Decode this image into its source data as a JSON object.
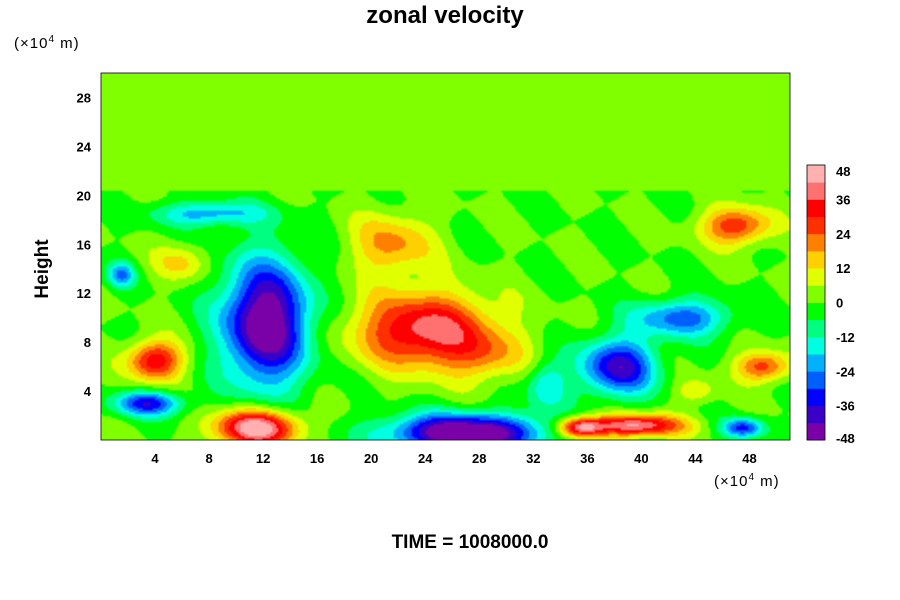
{
  "chart_data": {
    "type": "heatmap",
    "title": "zonal velocity",
    "xlabel": "",
    "ylabel": "Height",
    "x_unit": {
      "base": "(×10",
      "exp": "4",
      "rest": " m)"
    },
    "y_unit": {
      "base": "(×10",
      "exp": "4",
      "rest": " m)"
    },
    "xlim": [
      0,
      51
    ],
    "ylim": [
      0,
      30
    ],
    "x_ticks": [
      4,
      8,
      12,
      16,
      20,
      24,
      28,
      32,
      36,
      40,
      44,
      48
    ],
    "y_ticks": [
      4,
      8,
      12,
      16,
      20,
      24,
      28
    ],
    "colorbar": {
      "range": [
        -48,
        48
      ],
      "ticks": [
        48,
        36,
        24,
        12,
        0,
        -12,
        -24,
        -36,
        -48
      ],
      "colors": [
        "#7a00a8",
        "#3a00c8",
        "#0000ff",
        "#0060ff",
        "#00b0ff",
        "#00ffe0",
        "#00ff80",
        "#00ff00",
        "#80ff00",
        "#e0ff00",
        "#ffd000",
        "#ff8000",
        "#ff3000",
        "#ff0000",
        "#ff7070",
        "#ffb0b0"
      ]
    },
    "background_value": 0,
    "features": [
      {
        "x": 12.2,
        "y": 9.6,
        "sx": 3.2,
        "sy": 5.0,
        "value": -52
      },
      {
        "x": 24.0,
        "y": 9.0,
        "sx": 5.0,
        "sy": 3.0,
        "value": 40
      },
      {
        "x": 28.5,
        "y": 6.8,
        "sx": 3.0,
        "sy": 2.0,
        "value": 14
      },
      {
        "x": 21.5,
        "y": 16.0,
        "sx": 3.0,
        "sy": 2.5,
        "value": 20
      },
      {
        "x": 27.0,
        "y": 0.6,
        "sx": 5.5,
        "sy": 1.5,
        "value": -56
      },
      {
        "x": 11.5,
        "y": 1.0,
        "sx": 3.0,
        "sy": 1.5,
        "value": 50
      },
      {
        "x": 4.0,
        "y": 6.5,
        "sx": 2.0,
        "sy": 1.6,
        "value": 36
      },
      {
        "x": 38.3,
        "y": 6.0,
        "sx": 2.7,
        "sy": 2.3,
        "value": -40
      },
      {
        "x": 43.0,
        "y": 10.0,
        "sx": 3.5,
        "sy": 1.5,
        "value": -28
      },
      {
        "x": 47.0,
        "y": 17.5,
        "sx": 2.5,
        "sy": 1.5,
        "value": 30
      },
      {
        "x": 49.0,
        "y": 6.0,
        "sx": 2.0,
        "sy": 1.2,
        "value": 28
      },
      {
        "x": 39.5,
        "y": 1.2,
        "sx": 3.5,
        "sy": 0.9,
        "value": 44
      },
      {
        "x": 35.5,
        "y": 1.0,
        "sx": 1.6,
        "sy": 0.8,
        "value": 40
      },
      {
        "x": 3.5,
        "y": 3.0,
        "sx": 2.5,
        "sy": 1.0,
        "value": -34
      },
      {
        "x": 8.0,
        "y": 18.5,
        "sx": 4.0,
        "sy": 1.0,
        "value": -22
      },
      {
        "x": 6.0,
        "y": 14.5,
        "sx": 2.0,
        "sy": 1.5,
        "value": 14
      },
      {
        "x": 33.0,
        "y": 4.5,
        "sx": 1.5,
        "sy": 2.0,
        "value": -18
      },
      {
        "x": 47.5,
        "y": 1.0,
        "sx": 1.5,
        "sy": 0.8,
        "value": -32
      },
      {
        "x": 1.5,
        "y": 13.5,
        "sx": 1.0,
        "sy": 1.0,
        "value": -24
      },
      {
        "x": 44.0,
        "y": 4.0,
        "sx": 1.5,
        "sy": 1.0,
        "value": 12
      }
    ],
    "upper_layer": {
      "y_from": 20.3,
      "value": 0
    }
  },
  "time_label": "TIME = 1008000.0"
}
